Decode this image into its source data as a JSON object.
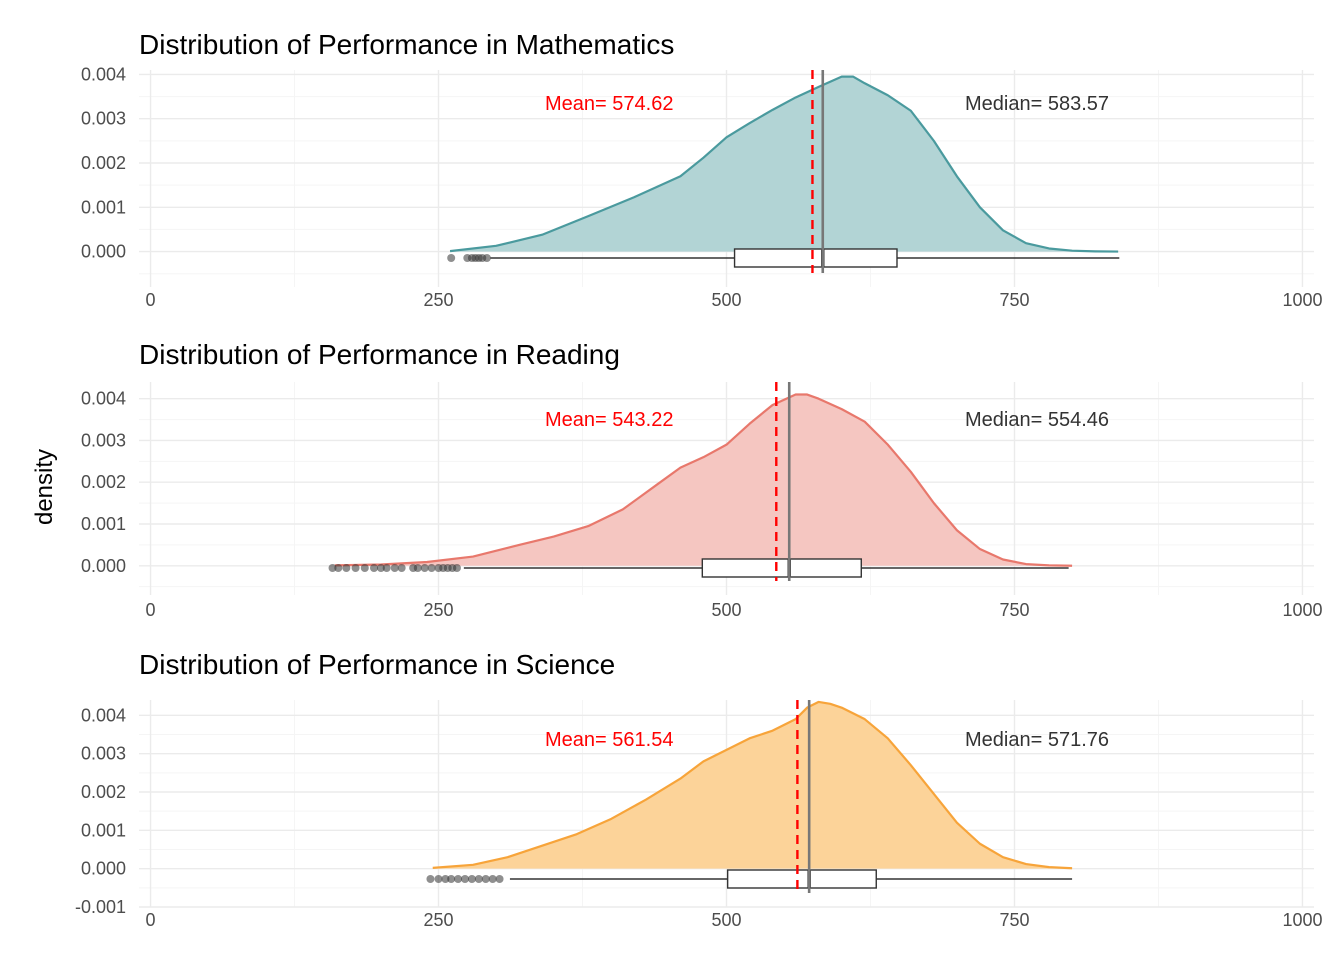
{
  "chart_data": [
    {
      "type": "density",
      "title": "Distribution of Performance in Mathematics",
      "xlabel": "",
      "ylabel": "density",
      "xlim": [
        -10,
        1010
      ],
      "ylim": [
        -0.0008,
        0.0041
      ],
      "x_ticks": [
        0,
        250,
        500,
        750,
        1000
      ],
      "y_ticks": [
        0,
        0.001,
        0.002,
        0.003,
        0.004
      ],
      "y_tick_labels": [
        "0.000",
        "0.001",
        "0.002",
        "0.003",
        "0.004"
      ],
      "fill_color": "#b2d4d5",
      "line_color": "#4a9a9e",
      "density": {
        "x": [
          260,
          300,
          340,
          380,
          420,
          460,
          480,
          500,
          520,
          540,
          560,
          580,
          600,
          610,
          620,
          640,
          660,
          680,
          700,
          720,
          740,
          760,
          780,
          800,
          820,
          840
        ],
        "y": [
          1e-05,
          0.00013,
          0.00038,
          0.0008,
          0.00123,
          0.0017,
          0.00212,
          0.00258,
          0.0029,
          0.0032,
          0.00348,
          0.00372,
          0.00395,
          0.00395,
          0.0038,
          0.00353,
          0.00318,
          0.0025,
          0.0017,
          0.001,
          0.00048,
          0.00019,
          7e-05,
          2e-05,
          5e-06,
          0.0
        ]
      },
      "boxplot": {
        "whisker_low": 295,
        "q1": 507,
        "median": 583.57,
        "q3": 648,
        "whisker_high": 841,
        "outliers": [
          261,
          275,
          279,
          282,
          285,
          288,
          292
        ]
      },
      "mean": 574.62,
      "median": 583.57,
      "mean_label": "Mean= 574.62",
      "median_label": "Median= 583.57",
      "mean_color": "#ff0000",
      "median_color": "#333333"
    },
    {
      "type": "density",
      "title": "Distribution of Performance in Reading",
      "xlabel": "",
      "ylabel": "density",
      "xlim": [
        -10,
        1010
      ],
      "ylim": [
        -0.0007,
        0.0044
      ],
      "x_ticks": [
        0,
        250,
        500,
        750,
        1000
      ],
      "y_ticks": [
        0,
        0.001,
        0.002,
        0.003,
        0.004
      ],
      "y_tick_labels": [
        "0.000",
        "0.001",
        "0.002",
        "0.003",
        "0.004"
      ],
      "fill_color": "#f5c6c1",
      "line_color": "#e8786c",
      "density": {
        "x": [
          160,
          200,
          240,
          280,
          320,
          350,
          380,
          410,
          440,
          460,
          480,
          500,
          520,
          540,
          560,
          570,
          580,
          600,
          620,
          640,
          660,
          680,
          700,
          720,
          740,
          760,
          780,
          800
        ],
        "y": [
          1e-05,
          3e-05,
          9e-05,
          0.00022,
          0.0005,
          0.0007,
          0.00095,
          0.00135,
          0.00195,
          0.00235,
          0.0026,
          0.0029,
          0.0034,
          0.00385,
          0.0041,
          0.0041,
          0.004,
          0.00375,
          0.00345,
          0.0029,
          0.00225,
          0.0015,
          0.00085,
          0.0004,
          0.00015,
          4e-05,
          1e-05,
          0.0
        ]
      },
      "boxplot": {
        "whisker_low": 272,
        "q1": 479,
        "median": 554.46,
        "q3": 617,
        "whisker_high": 797,
        "outliers": [
          158,
          163,
          170,
          178,
          186,
          194,
          200,
          205,
          212,
          218,
          228,
          232,
          238,
          244,
          250,
          254,
          258,
          262,
          266
        ]
      },
      "mean": 543.22,
      "median": 554.46,
      "mean_label": "Mean= 543.22",
      "median_label": "Median= 554.46",
      "mean_color": "#ff0000",
      "median_color": "#333333"
    },
    {
      "type": "density",
      "title": "Distribution of Performance in Science",
      "xlabel": "",
      "ylabel": "density",
      "xlim": [
        -10,
        1010
      ],
      "ylim": [
        -0.001,
        0.0044
      ],
      "x_ticks": [
        0,
        250,
        500,
        750,
        1000
      ],
      "y_ticks": [
        -0.001,
        0,
        0.001,
        0.002,
        0.003,
        0.004
      ],
      "y_tick_labels": [
        "-0.001",
        "0.000",
        "0.001",
        "0.002",
        "0.003",
        "0.004"
      ],
      "fill_color": "#fcd399",
      "line_color": "#f7a43a",
      "density": {
        "x": [
          245,
          280,
          310,
          340,
          370,
          400,
          430,
          460,
          480,
          500,
          520,
          540,
          560,
          570,
          580,
          590,
          600,
          620,
          640,
          660,
          680,
          700,
          720,
          740,
          760,
          780,
          800
        ],
        "y": [
          2e-05,
          0.0001,
          0.0003,
          0.0006,
          0.0009,
          0.0013,
          0.0018,
          0.00235,
          0.0028,
          0.0031,
          0.0034,
          0.0036,
          0.0039,
          0.0042,
          0.00435,
          0.0043,
          0.0042,
          0.0039,
          0.0034,
          0.0027,
          0.00195,
          0.0012,
          0.00065,
          0.0003,
          0.00012,
          4e-05,
          1e-05
        ]
      },
      "boxplot": {
        "whisker_low": 312,
        "q1": 501,
        "median": 571.76,
        "q3": 630,
        "whisker_high": 800,
        "outliers": [
          243,
          250,
          256,
          261,
          267,
          273,
          279,
          285,
          291,
          297,
          303
        ]
      },
      "mean": 561.54,
      "median": 571.76,
      "mean_label": "Mean= 561.54",
      "median_label": "Median= 571.76",
      "mean_color": "#ff0000",
      "median_color": "#333333"
    }
  ],
  "shared_ylabel": "density",
  "colors": {
    "grid_major": "#ebebeb",
    "grid_minor": "#f5f5f5",
    "tick_text": "#4d4d4d",
    "box_outline": "#333333",
    "outlier": "#333333"
  }
}
